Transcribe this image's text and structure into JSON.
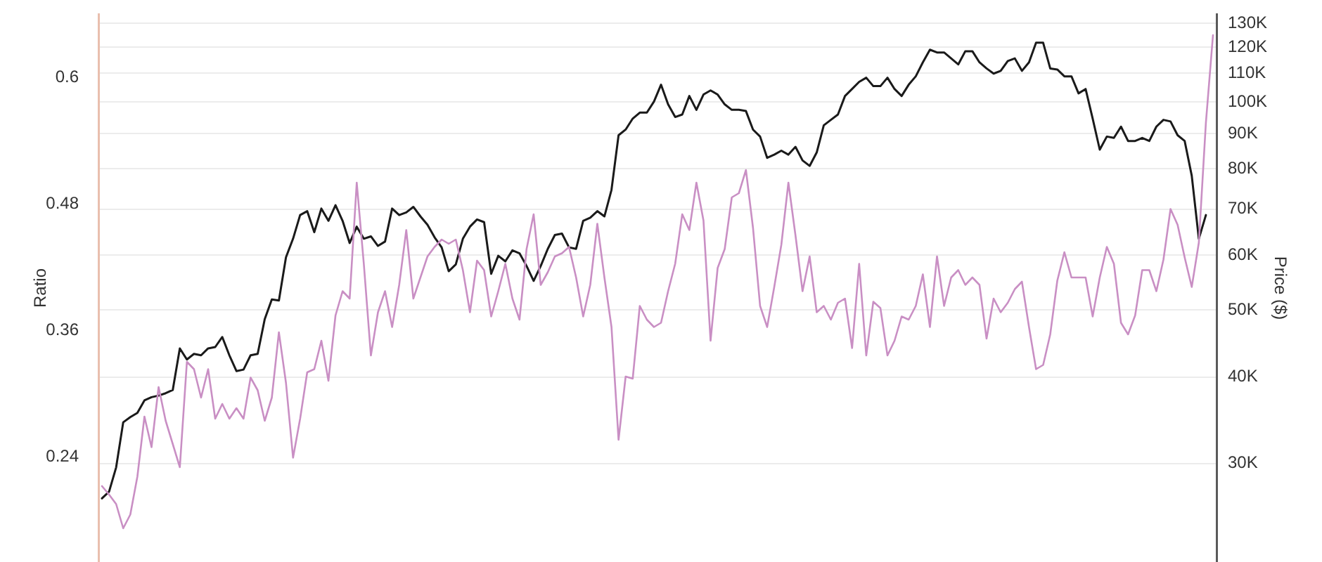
{
  "chart_data": {
    "type": "line",
    "categories": [
      null,
      null,
      null,
      null,
      null,
      null,
      null,
      null,
      null,
      null,
      null,
      null,
      null,
      null,
      null,
      null,
      null,
      null,
      null,
      null,
      null,
      null,
      null,
      null,
      null,
      null,
      null,
      null,
      null,
      null,
      null,
      null,
      null,
      null,
      null,
      null,
      null,
      null,
      null,
      null,
      null,
      null,
      null,
      null,
      null,
      null,
      null,
      null,
      null,
      null,
      null,
      null,
      null,
      null,
      null,
      null,
      null,
      null,
      null,
      null,
      null,
      null,
      null,
      null,
      null,
      null,
      null,
      null,
      null,
      null,
      null,
      null,
      null,
      null,
      null,
      null,
      null,
      null,
      null,
      null,
      null,
      null,
      null,
      null,
      null,
      null,
      null,
      null,
      null,
      null,
      null,
      null,
      null,
      null,
      null,
      null,
      null,
      null,
      null,
      null,
      null,
      null,
      null,
      null,
      null,
      null,
      null,
      null,
      null,
      null,
      null,
      null,
      null,
      null,
      null,
      null,
      null,
      null,
      null,
      null,
      null,
      null,
      null,
      null,
      null,
      null,
      null,
      null,
      null,
      null,
      null,
      null,
      null,
      null,
      null,
      null,
      null,
      null,
      null,
      null,
      null,
      null,
      null,
      null,
      null,
      null,
      null,
      null,
      null,
      null,
      null,
      null,
      null,
      null,
      null,
      null,
      null,
      null
    ],
    "series": [
      {
        "color": "#c98fc4",
        "axis": "y",
        "values": [
          0.212,
          0.204,
          0.195,
          0.172,
          0.185,
          0.221,
          0.278,
          0.249,
          0.306,
          0.274,
          0.252,
          0.23,
          0.33,
          0.323,
          0.296,
          0.323,
          0.276,
          0.29,
          0.276,
          0.286,
          0.276,
          0.315,
          0.303,
          0.274,
          0.296,
          0.358,
          0.31,
          0.239,
          0.276,
          0.32,
          0.323,
          0.35,
          0.312,
          0.374,
          0.397,
          0.39,
          0.5,
          0.423,
          0.336,
          0.377,
          0.397,
          0.363,
          0.403,
          0.455,
          0.39,
          0.41,
          0.43,
          0.439,
          0.446,
          0.442,
          0.446,
          0.417,
          0.377,
          0.426,
          0.417,
          0.373,
          0.397,
          0.423,
          0.39,
          0.37,
          0.437,
          0.47,
          0.403,
          0.415,
          0.43,
          0.433,
          0.439,
          0.41,
          0.373,
          0.403,
          0.461,
          0.41,
          0.363,
          0.256,
          0.316,
          0.314,
          0.383,
          0.37,
          0.363,
          0.367,
          0.397,
          0.423,
          0.47,
          0.455,
          0.5,
          0.464,
          0.35,
          0.419,
          0.437,
          0.486,
          0.49,
          0.512,
          0.457,
          0.383,
          0.363,
          0.401,
          0.441,
          0.5,
          0.45,
          0.397,
          0.43,
          0.377,
          0.383,
          0.37,
          0.386,
          0.39,
          0.343,
          0.423,
          0.336,
          0.387,
          0.381,
          0.336,
          0.35,
          0.373,
          0.37,
          0.383,
          0.413,
          0.363,
          0.43,
          0.383,
          0.41,
          0.417,
          0.403,
          0.41,
          0.403,
          0.352,
          0.39,
          0.377,
          0.386,
          0.399,
          0.406,
          0.363,
          0.323,
          0.327,
          0.356,
          0.407,
          0.434,
          0.41,
          0.41,
          0.41,
          0.373,
          0.41,
          0.439,
          0.423,
          0.367,
          0.356,
          0.374,
          0.417,
          0.417,
          0.397,
          0.427,
          0.475,
          0.46,
          0.429,
          0.401,
          0.443,
          0.557,
          0.64
        ]
      },
      {
        "color": "#1a1a1a",
        "axis": "y2",
        "values": [
          26700,
          27300,
          29600,
          34400,
          35000,
          35500,
          37000,
          37400,
          37600,
          37900,
          38300,
          44000,
          42400,
          43200,
          43000,
          44000,
          44200,
          45700,
          43000,
          40800,
          41000,
          43000,
          43200,
          48500,
          51800,
          51600,
          59600,
          63400,
          68600,
          69500,
          64800,
          70100,
          67300,
          70900,
          67300,
          62500,
          66000,
          63400,
          63900,
          61900,
          62800,
          70100,
          68600,
          69200,
          70500,
          68300,
          66400,
          63700,
          61600,
          56900,
          58200,
          63400,
          66000,
          67600,
          67000,
          56400,
          59900,
          58800,
          61000,
          60400,
          57900,
          55100,
          57900,
          61300,
          64200,
          64500,
          61600,
          61300,
          67300,
          68000,
          69500,
          68300,
          74600,
          89500,
          91200,
          94600,
          96500,
          96500,
          100100,
          105900,
          99200,
          95100,
          95900,
          102000,
          97400,
          102500,
          103900,
          102500,
          99200,
          97400,
          97400,
          97000,
          91200,
          89100,
          83000,
          83900,
          85000,
          83900,
          86100,
          82300,
          80800,
          84500,
          92500,
          94200,
          95900,
          102000,
          104400,
          106900,
          108400,
          105400,
          105400,
          108400,
          104400,
          102000,
          105900,
          108900,
          114100,
          119000,
          117900,
          117900,
          115600,
          113300,
          118400,
          118400,
          114100,
          111800,
          109900,
          110900,
          114600,
          115600,
          110900,
          114100,
          121800,
          121800,
          111800,
          111400,
          108900,
          108900,
          102900,
          104400,
          94600,
          85300,
          89100,
          88700,
          92100,
          87800,
          87800,
          88700,
          87800,
          92100,
          94200,
          93700,
          89500,
          87800,
          78200,
          63400,
          68600,
          null
        ]
      }
    ],
    "ylabel": "Ratio",
    "y2label": "Price ($)",
    "ylim": [
      0.14,
      0.66
    ],
    "yticks": [
      0.24,
      0.36,
      0.48,
      0.6
    ],
    "y2lim": [
      21600,
      134000
    ],
    "y2ticks": [
      {
        "value": 30000,
        "label": "30K"
      },
      {
        "value": 40000,
        "label": "40K"
      },
      {
        "value": 50000,
        "label": "50K"
      },
      {
        "value": 60000,
        "label": "60K"
      },
      {
        "value": 70000,
        "label": "70K"
      },
      {
        "value": 80000,
        "label": "80K"
      },
      {
        "value": 90000,
        "label": "90K"
      },
      {
        "value": 100000,
        "label": "100K"
      },
      {
        "value": 110000,
        "label": "110K"
      },
      {
        "value": 120000,
        "label": "120K"
      },
      {
        "value": 130000,
        "label": "130K"
      }
    ],
    "log": "y2",
    "grid": "y"
  }
}
